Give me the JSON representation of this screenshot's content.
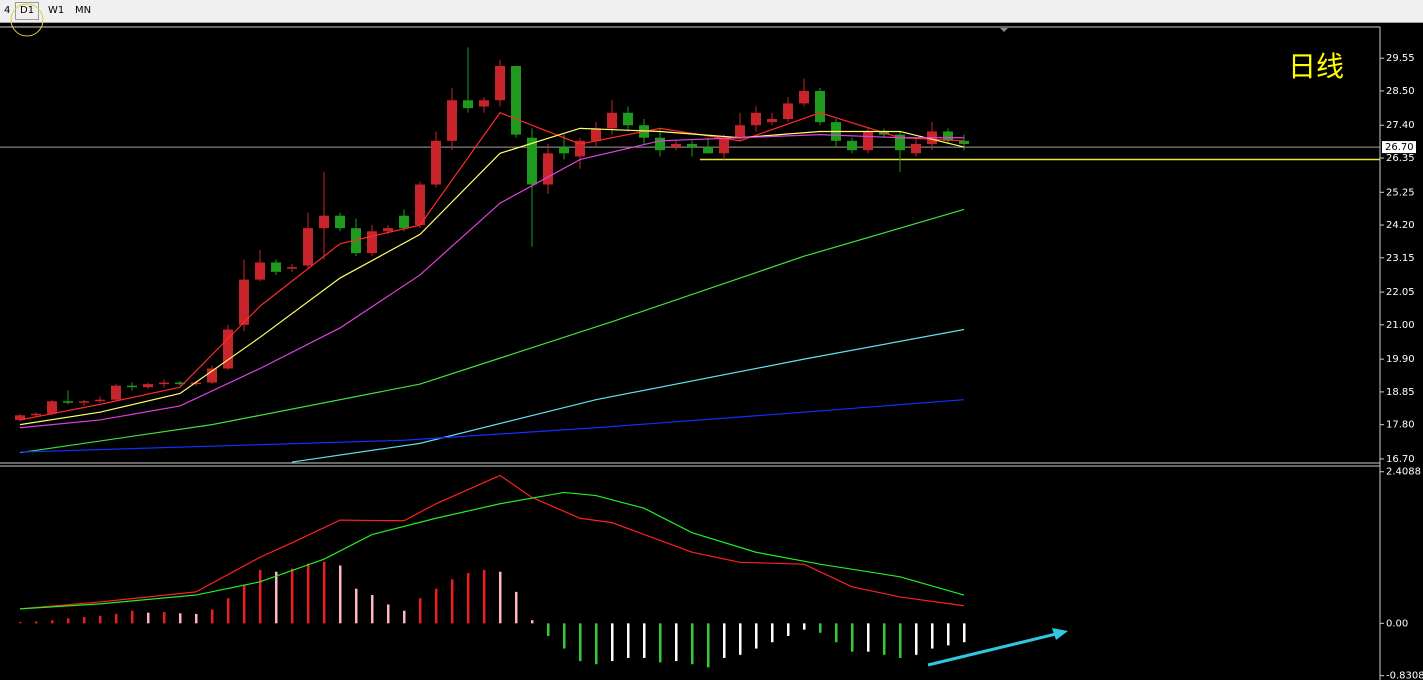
{
  "toolbar": {
    "tabs": [
      "4",
      "D1",
      "W1",
      "MN"
    ]
  },
  "chart_data": [
    {
      "type": "candlestick",
      "title": "日线",
      "up_color": "#c8242b",
      "down_color": "#1f9a1f",
      "ylim": [
        16.57,
        30.55
      ],
      "yticks": [
        {
          "value": 29.55,
          "label": "29.55"
        },
        {
          "value": 28.5,
          "label": "28.50"
        },
        {
          "value": 27.4,
          "label": "27.40"
        },
        {
          "value": 26.35,
          "label": "26.35"
        },
        {
          "value": 25.25,
          "label": "25.25"
        },
        {
          "value": 24.2,
          "label": "24.20"
        },
        {
          "value": 23.15,
          "label": "23.15"
        },
        {
          "value": 22.05,
          "label": "22.05"
        },
        {
          "value": 21,
          "label": "21.00"
        },
        {
          "value": 19.9,
          "label": "19.90"
        },
        {
          "value": 18.85,
          "label": "18.85"
        },
        {
          "value": 17.8,
          "label": "17.80"
        },
        {
          "value": 16.7,
          "label": "16.70"
        }
      ],
      "current_price": {
        "value": 26.7,
        "label": "26.70"
      },
      "hline": {
        "value": 26.3,
        "color": "#e8e830"
      },
      "open": [
        17.95,
        18.1,
        18.15,
        18.55,
        18.5,
        18.55,
        18.6,
        19.05,
        19.0,
        19.1,
        19.15,
        19.1,
        19.15,
        19.6,
        21.0,
        22.45,
        23.0,
        22.8,
        22.9,
        24.1,
        24.5,
        24.1,
        23.3,
        24.0,
        24.5,
        24.2,
        25.5,
        26.9,
        28.2,
        28.0,
        28.2,
        29.3,
        27.0,
        25.5,
        26.7,
        26.4,
        26.9,
        27.3,
        27.8,
        27.4,
        27.0,
        26.7,
        26.8,
        26.7,
        26.5,
        27.0,
        27.4,
        27.5,
        27.6,
        28.1,
        28.5,
        27.5,
        26.9,
        26.6,
        27.2,
        27.1,
        26.5,
        26.8,
        27.2,
        26.9
      ],
      "high": [
        18.15,
        18.2,
        18.6,
        18.9,
        18.6,
        18.7,
        19.1,
        19.15,
        19.15,
        19.25,
        19.2,
        19.2,
        19.7,
        21.0,
        23.1,
        23.4,
        23.1,
        22.95,
        24.6,
        25.9,
        24.6,
        24.4,
        24.2,
        24.2,
        24.7,
        25.6,
        27.2,
        28.6,
        29.9,
        28.3,
        29.5,
        29.3,
        27.3,
        26.8,
        27.1,
        27.0,
        27.5,
        28.2,
        28.0,
        27.6,
        27.3,
        26.9,
        26.9,
        27.0,
        27.1,
        27.8,
        28.0,
        27.8,
        28.3,
        28.9,
        28.6,
        27.6,
        27.0,
        27.3,
        27.3,
        27.2,
        27.0,
        27.5,
        27.3,
        27.1
      ],
      "low": [
        17.9,
        18.05,
        18.1,
        18.45,
        18.4,
        18.5,
        18.55,
        18.9,
        18.95,
        19.0,
        19.05,
        19.05,
        19.1,
        19.55,
        20.8,
        22.4,
        22.6,
        22.7,
        22.8,
        23.1,
        24.0,
        23.2,
        23.2,
        23.9,
        24.0,
        24.1,
        25.4,
        26.6,
        27.8,
        27.8,
        28.0,
        27.0,
        23.5,
        25.2,
        26.3,
        26.0,
        26.7,
        27.1,
        27.2,
        26.8,
        26.4,
        26.6,
        26.4,
        26.5,
        26.3,
        26.9,
        27.2,
        27.4,
        27.5,
        28.0,
        27.4,
        26.7,
        26.5,
        26.5,
        27.0,
        25.9,
        26.4,
        26.6,
        26.8,
        26.6
      ],
      "close": [
        18.1,
        18.15,
        18.55,
        18.5,
        18.55,
        18.6,
        19.05,
        19.0,
        19.1,
        19.15,
        19.1,
        19.15,
        19.6,
        20.85,
        22.45,
        23.0,
        22.7,
        22.85,
        24.1,
        24.5,
        24.1,
        23.3,
        24.0,
        24.1,
        24.1,
        25.5,
        26.9,
        28.2,
        27.95,
        28.2,
        29.3,
        27.1,
        25.5,
        26.5,
        26.5,
        26.9,
        27.3,
        27.8,
        27.4,
        27.0,
        26.6,
        26.8,
        26.7,
        26.5,
        27.0,
        27.4,
        27.8,
        27.6,
        28.1,
        28.5,
        27.5,
        26.9,
        26.6,
        27.2,
        27.1,
        26.6,
        26.8,
        27.2,
        26.9,
        26.8
      ],
      "series": [
        {
          "color": "#ff2a2a",
          "x": [
            0,
            5,
            10,
            15,
            20,
            25,
            30,
            35,
            40,
            45,
            50,
            55,
            59
          ],
          "values": [
            17.95,
            18.45,
            19.0,
            21.6,
            23.6,
            24.2,
            27.8,
            26.8,
            27.3,
            26.9,
            27.8,
            27.0,
            26.9
          ]
        },
        {
          "color": "#ffff66",
          "x": [
            0,
            5,
            10,
            15,
            20,
            25,
            30,
            35,
            40,
            45,
            50,
            55,
            59
          ],
          "values": [
            17.8,
            18.2,
            18.8,
            20.6,
            22.5,
            23.9,
            26.5,
            27.3,
            27.2,
            27.0,
            27.2,
            27.2,
            26.7
          ]
        },
        {
          "color": "#e040e0",
          "x": [
            0,
            5,
            10,
            15,
            20,
            25,
            30,
            35,
            40,
            45,
            50,
            55,
            59
          ],
          "values": [
            17.7,
            17.95,
            18.4,
            19.6,
            20.9,
            22.6,
            24.9,
            26.3,
            26.9,
            27.0,
            27.1,
            27.0,
            27.0
          ]
        },
        {
          "color": "#40e040",
          "x": [
            0,
            12,
            25,
            37,
            49,
            59
          ],
          "values": [
            16.9,
            17.8,
            19.1,
            21.1,
            23.2,
            24.7
          ]
        },
        {
          "color": "#60e0f0",
          "x": [
            17,
            25,
            36,
            49,
            59
          ],
          "values": [
            16.6,
            17.2,
            18.6,
            19.9,
            20.85
          ]
        },
        {
          "color": "#1030ff",
          "x": [
            0,
            24,
            36,
            49,
            59
          ],
          "values": [
            16.92,
            17.3,
            17.7,
            18.2,
            18.6
          ]
        }
      ]
    },
    {
      "type": "macd",
      "ylim": [
        -0.9,
        2.5
      ],
      "yticks": [
        2.4088,
        {
          "value": 0,
          "label": "0.00"
        },
        -0.8308
      ],
      "hist_colors": {
        "pos_rise": "#ee1c1c",
        "pos_fall": "#ffb6c1",
        "neg_fall": "#33cc33",
        "neg_rise": "#ffffff"
      },
      "histogram": [
        0.02,
        0.03,
        0.05,
        0.08,
        0.1,
        0.12,
        0.15,
        0.2,
        0.17,
        0.18,
        0.16,
        0.15,
        0.22,
        0.4,
        0.6,
        0.85,
        0.82,
        0.87,
        0.95,
        0.98,
        0.92,
        0.55,
        0.45,
        0.3,
        0.2,
        0.4,
        0.55,
        0.7,
        0.8,
        0.85,
        0.82,
        0.5,
        0.05,
        -0.2,
        -0.4,
        -0.6,
        -0.65,
        -0.6,
        -0.55,
        -0.55,
        -0.62,
        -0.6,
        -0.65,
        -0.7,
        -0.55,
        -0.5,
        -0.4,
        -0.3,
        -0.2,
        -0.1,
        -0.15,
        -0.3,
        -0.45,
        -0.45,
        -0.5,
        -0.55,
        -0.5,
        -0.4,
        -0.35,
        -0.3
      ],
      "series": [
        {
          "color": "#ff2020",
          "x": [
            0,
            5,
            11,
            15,
            17,
            20,
            24,
            26,
            30,
            32,
            35,
            37,
            42,
            45,
            49,
            52,
            55,
            59
          ],
          "values": [
            0.23,
            0.34,
            0.5,
            1.05,
            1.28,
            1.64,
            1.63,
            1.9,
            2.35,
            2.0,
            1.67,
            1.6,
            1.13,
            0.97,
            0.94,
            0.58,
            0.42,
            0.28
          ]
        },
        {
          "color": "#22ee22",
          "x": [
            0,
            5,
            11,
            15,
            19,
            22,
            26,
            30,
            34,
            36,
            39,
            42,
            46,
            50,
            55,
            59
          ],
          "values": [
            0.23,
            0.31,
            0.45,
            0.66,
            1.02,
            1.41,
            1.67,
            1.9,
            2.08,
            2.03,
            1.83,
            1.44,
            1.13,
            0.94,
            0.74,
            0.45
          ]
        }
      ]
    }
  ]
}
